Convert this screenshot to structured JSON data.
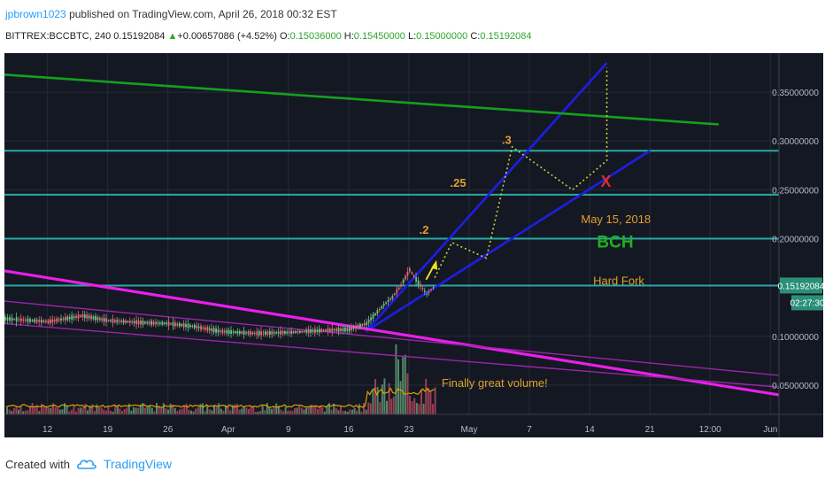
{
  "header": {
    "author": "jpbrown1023",
    "published_text": "published on TradingView.com, April 26, 2018 00:32 EST",
    "symbol": "BITTREX:BCCBTC, 240",
    "last": "0.15192084",
    "arrow": "▲",
    "change": "+0.00657086 (+4.52%)",
    "o_label": "O:",
    "o_value": "0.15036000",
    "h_label": "H:",
    "h_value": "0.15450000",
    "l_label": "L:",
    "l_value": "0.15000000",
    "c_label": "C:",
    "c_value": "0.15192084"
  },
  "footer": {
    "created_with": "Created with",
    "brand": "TradingView",
    "logo_icon": "tradingview-cloud-icon"
  },
  "chart_data": {
    "type": "line",
    "y_ticks": [
      "0.35000000",
      "0.30000000",
      "0.25000000",
      "0.20000000",
      "0.10000000",
      "0.05000000"
    ],
    "x_ticks": [
      "12",
      "19",
      "26",
      "Apr",
      "9",
      "16",
      "23",
      "May",
      "7",
      "14",
      "21",
      "12:00",
      "Jun"
    ],
    "price_tag": "0.15192084",
    "countdown_tag": "02:27:30",
    "ylim": [
      0.02,
      0.39
    ],
    "xlim": [
      "2018-03-07",
      "2018-06-05"
    ],
    "grid": true,
    "annotations": {
      "fib_2": ".2",
      "fib_25": ".25",
      "fib_3": ".3",
      "date": "May 15, 2018",
      "bch": "BCH",
      "hard_fork": "Hard Fork",
      "cross": "X",
      "volume_note": "Finally great volume!"
    },
    "horizontal_levels": [
      0.29,
      0.245,
      0.2,
      0.152
    ],
    "price_series": {
      "dates": [
        "2018-03-07",
        "2018-03-12",
        "2018-03-16",
        "2018-03-19",
        "2018-03-23",
        "2018-03-26",
        "2018-03-29",
        "2018-04-01",
        "2018-04-05",
        "2018-04-09",
        "2018-04-13",
        "2018-04-16",
        "2018-04-18",
        "2018-04-20",
        "2018-04-21",
        "2018-04-22",
        "2018-04-23",
        "2018-04-24",
        "2018-04-25",
        "2018-04-26"
      ],
      "values": [
        0.118,
        0.115,
        0.121,
        0.116,
        0.114,
        0.113,
        0.11,
        0.105,
        0.103,
        0.104,
        0.106,
        0.107,
        0.113,
        0.132,
        0.14,
        0.152,
        0.168,
        0.155,
        0.143,
        0.152
      ]
    },
    "projection_path": {
      "dates": [
        "2018-04-26",
        "2018-04-28",
        "2018-05-02",
        "2018-05-05",
        "2018-05-12",
        "2018-05-16",
        "2018-05-16"
      ],
      "values": [
        0.16,
        0.196,
        0.18,
        0.294,
        0.25,
        0.28,
        0.375
      ]
    },
    "trendlines": [
      {
        "name": "",
        "color": "#1e1ee6",
        "x": [
          "2018-04-18",
          "2018-05-16"
        ],
        "y": [
          0.105,
          0.38
        ]
      },
      {
        "name": "",
        "color": "#1e1ee6",
        "x": [
          "2018-04-18",
          "2018-05-21"
        ],
        "y": [
          0.105,
          0.29
        ]
      },
      {
        "name": "",
        "color": "#14a01e",
        "x": [
          "2018-03-07",
          "2018-05-29"
        ],
        "y": [
          0.368,
          0.317
        ]
      },
      {
        "name": "",
        "color": "#ea1fea",
        "x": [
          "2018-03-07",
          "2018-06-05"
        ],
        "y": [
          0.167,
          0.04
        ]
      },
      {
        "name": "",
        "color": "#9a26a8",
        "x": [
          "2018-03-07",
          "2018-06-05"
        ],
        "y": [
          0.136,
          0.06
        ]
      },
      {
        "name": "",
        "color": "#9a26a8",
        "x": [
          "2018-03-07",
          "2018-06-05"
        ],
        "y": [
          0.113,
          0.048
        ]
      }
    ]
  }
}
